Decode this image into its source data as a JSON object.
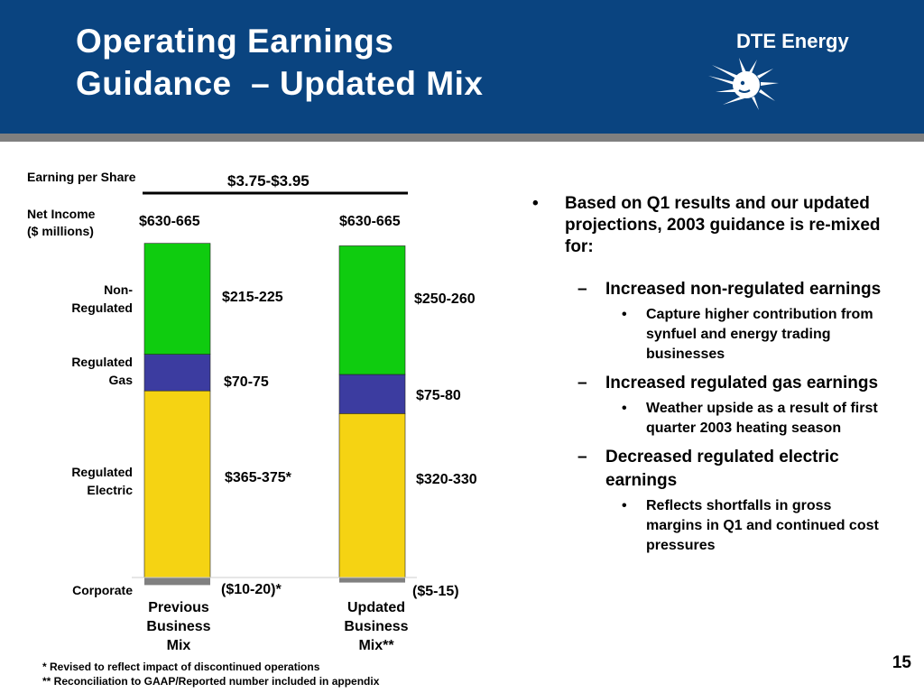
{
  "header": {
    "title_line1": "Operating Earnings",
    "title_line2": "Guidance  – Updated Mix",
    "logo_text": "DTE Energy",
    "logo_icon": "sun-face-logo-icon"
  },
  "chart_data": {
    "type": "bar",
    "stacked": true,
    "eps_label": "Earning per Share",
    "eps_value": "$3.75-$3.95",
    "ylabel": "Net Income\n($ millions)",
    "categories": [
      "Previous Business Mix",
      "Updated Business Mix**"
    ],
    "totals": [
      "$630-665",
      "$630-665"
    ],
    "series": [
      {
        "name": "Regulated Electric",
        "color": "#f5d313",
        "values": [
          370,
          325
        ],
        "labels": [
          "$365-375*",
          "$320-330"
        ]
      },
      {
        "name": "Regulated Gas",
        "color": "#3c3ca0",
        "values": [
          72.5,
          77.5
        ],
        "labels": [
          "$70-75",
          "$75-80"
        ]
      },
      {
        "name": "Non-Regulated",
        "color": "#0fcc0f",
        "values": [
          220,
          255
        ],
        "labels": [
          "$215-225",
          "$250-260"
        ]
      },
      {
        "name": "Corporate",
        "color": "#808080",
        "values": [
          -15,
          -10
        ],
        "labels": [
          "($10-20)*",
          "($5-15)"
        ]
      }
    ],
    "row_labels": {
      "non_regulated": "Non-\nRegulated",
      "regulated_gas": "Regulated\nGas",
      "regulated_electric": "Regulated\nElectric",
      "corporate": "Corporate"
    },
    "category_labels": [
      "Previous\nBusiness\nMix",
      "Updated\nBusiness\nMix**"
    ]
  },
  "bullets": {
    "main": "Based on Q1 results and our updated projections, 2003 guidance is re-mixed for:",
    "items": [
      {
        "text": "Increased non-regulated earnings",
        "sub": "Capture higher contribution from synfuel and energy trading businesses"
      },
      {
        "text": "Increased regulated gas earnings",
        "sub": "Weather upside as a result of first quarter 2003 heating season"
      },
      {
        "text": "Decreased regulated electric earnings",
        "sub": "Reflects shortfalls in gross margins in Q1 and continued cost pressures"
      }
    ],
    "marker_main": "•",
    "marker_dash": "–",
    "marker_sub": "•"
  },
  "footnotes": {
    "note1": "* Revised to reflect impact of discontinued operations",
    "note2": "** Reconciliation to GAAP/Reported number included in appendix"
  },
  "page_number": "15"
}
